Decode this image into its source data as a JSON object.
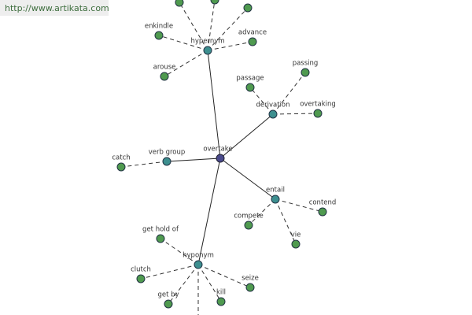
{
  "watermark": "http://www.artikata.com",
  "root": {
    "label": "overtake"
  },
  "groups": [
    {
      "label": "hypernym",
      "leaves": [
        "enkindle",
        "advance",
        "arouse"
      ]
    },
    {
      "label": "derivation",
      "leaves": [
        "passage",
        "passing",
        "overtaking"
      ]
    },
    {
      "label": "verb group",
      "leaves": [
        "catch"
      ]
    },
    {
      "label": "entail",
      "leaves": [
        "compete",
        "contend",
        "vie"
      ]
    },
    {
      "label": "hyponym",
      "leaves": [
        "get hold of",
        "clutch",
        "get by",
        "kill",
        "seize"
      ]
    }
  ]
}
